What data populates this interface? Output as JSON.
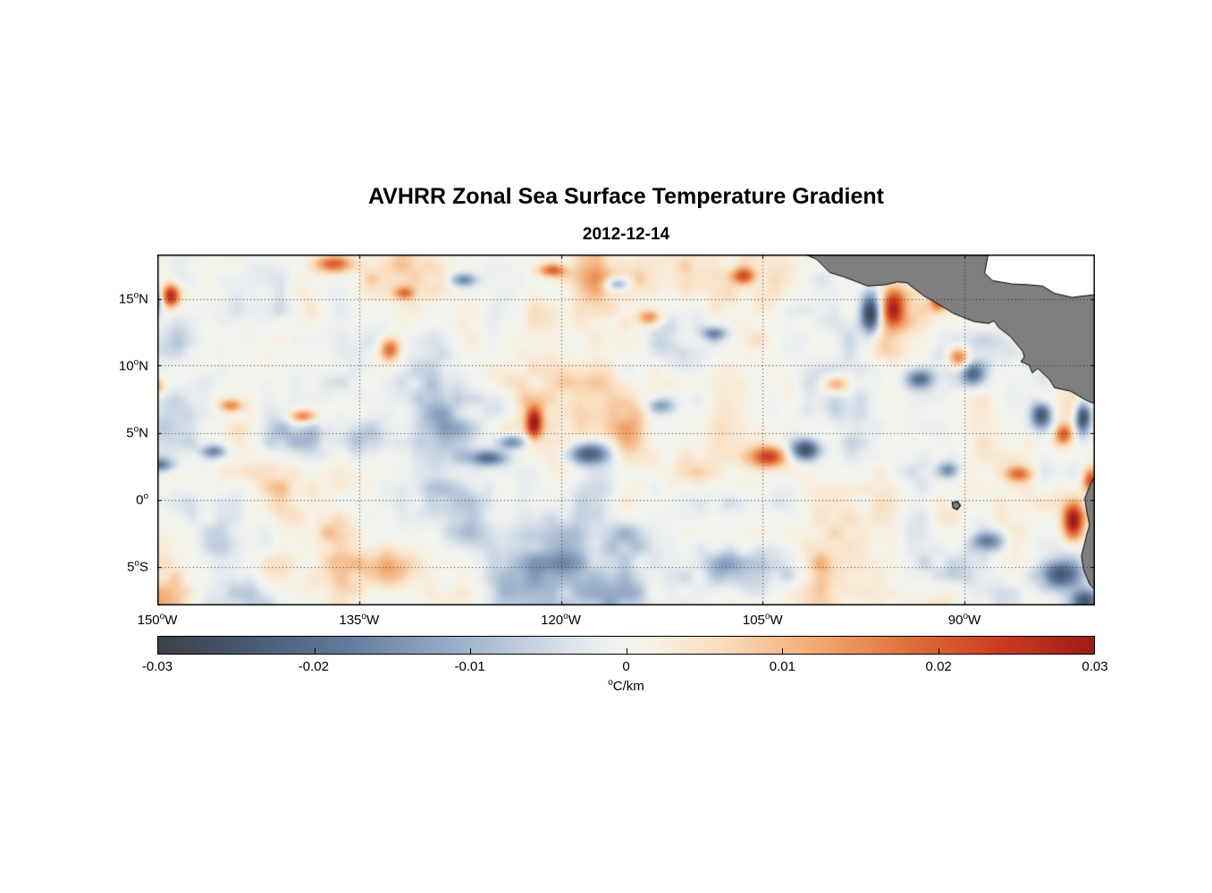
{
  "chart_data": {
    "type": "heatmap",
    "title": "AVHRR Zonal Sea Surface Temperature Gradient",
    "subtitle": "2012-12-14",
    "grid": "dotted",
    "land_color": "#7f7f7f",
    "coast_stroke": "#000000",
    "caribbean_mask_color": "#ffffff",
    "axes": {
      "lon_range": [
        -150,
        -80.3
      ],
      "lat_range": [
        -7.9,
        18.3
      ],
      "x_ticks": [
        {
          "num": "150",
          "deg": "o",
          "hem": "W",
          "lon": -150
        },
        {
          "num": "135",
          "deg": "o",
          "hem": "W",
          "lon": -135
        },
        {
          "num": "120",
          "deg": "o",
          "hem": "W",
          "lon": -120
        },
        {
          "num": "105",
          "deg": "o",
          "hem": "W",
          "lon": -105
        },
        {
          "num": "90",
          "deg": "o",
          "hem": "W",
          "lon": -90
        }
      ],
      "y_ticks": [
        {
          "num": "15",
          "deg": "o",
          "hem": "N",
          "lat": 15
        },
        {
          "num": "10",
          "deg": "o",
          "hem": "N",
          "lat": 10
        },
        {
          "num": "5",
          "deg": "o",
          "hem": "N",
          "lat": 5
        },
        {
          "num": "0",
          "deg": "o",
          "hem": "",
          "lat": 0
        },
        {
          "num": "5",
          "deg": "o",
          "hem": "S",
          "lat": -5
        }
      ]
    },
    "colorbar": {
      "min": -0.03,
      "max": 0.03,
      "label_deg": "o",
      "label_text": "C/km",
      "ticks": [
        {
          "label": "-0.03",
          "value": -0.03
        },
        {
          "label": "-0.02",
          "value": -0.02
        },
        {
          "label": "-0.01",
          "value": -0.01
        },
        {
          "label": "0",
          "value": 0
        },
        {
          "label": "0.01",
          "value": 0.01
        },
        {
          "label": "0.02",
          "value": 0.02
        },
        {
          "label": "0.03",
          "value": 0.03
        }
      ],
      "stops": [
        [
          -0.03,
          "#3b4046"
        ],
        [
          -0.024,
          "#495a73"
        ],
        [
          -0.018,
          "#62799b"
        ],
        [
          -0.012,
          "#90a7c4"
        ],
        [
          -0.006,
          "#c6d3e1"
        ],
        [
          -0.002,
          "#e9edf0"
        ],
        [
          0.0,
          "#f2f4ee"
        ],
        [
          0.002,
          "#f8f0e2"
        ],
        [
          0.006,
          "#f9dec0"
        ],
        [
          0.012,
          "#f3ab74"
        ],
        [
          0.018,
          "#e1703a"
        ],
        [
          0.024,
          "#cc3b22"
        ],
        [
          0.03,
          "#9e1a18"
        ]
      ]
    },
    "ocean_features": [
      {
        "lon": -149.0,
        "lat": 15.2,
        "value": 0.027,
        "rx": 0.7,
        "ry": 0.9
      },
      {
        "lon": -150.3,
        "lat": 15.0,
        "value": -0.028,
        "rx": 0.6,
        "ry": 1.0
      },
      {
        "lon": -136.9,
        "lat": 17.6,
        "value": 0.02,
        "rx": 1.4,
        "ry": 0.7
      },
      {
        "lon": -132.7,
        "lat": 11.2,
        "value": 0.02,
        "rx": 0.8,
        "ry": 0.9
      },
      {
        "lon": -139.2,
        "lat": 6.2,
        "value": 0.018,
        "rx": 1.0,
        "ry": 0.5
      },
      {
        "lon": -125.4,
        "lat": 3.1,
        "value": -0.02,
        "rx": 1.5,
        "ry": 0.6
      },
      {
        "lon": -123.6,
        "lat": 4.3,
        "value": -0.018,
        "rx": 1.1,
        "ry": 0.6
      },
      {
        "lon": -122.0,
        "lat": 5.6,
        "value": 0.024,
        "rx": 0.6,
        "ry": 1.1
      },
      {
        "lon": -117.8,
        "lat": 3.4,
        "value": -0.024,
        "rx": 1.5,
        "ry": 0.8
      },
      {
        "lon": -112.6,
        "lat": 7.0,
        "value": -0.013,
        "rx": 1.0,
        "ry": 0.6
      },
      {
        "lon": -104.6,
        "lat": 3.2,
        "value": 0.024,
        "rx": 1.4,
        "ry": 0.8
      },
      {
        "lon": -101.8,
        "lat": 3.7,
        "value": -0.026,
        "rx": 1.1,
        "ry": 0.8
      },
      {
        "lon": -95.3,
        "lat": 14.2,
        "value": 0.03,
        "rx": 0.9,
        "ry": 1.5
      },
      {
        "lon": -97.0,
        "lat": 13.9,
        "value": -0.029,
        "rx": 0.7,
        "ry": 1.4
      },
      {
        "lon": -99.6,
        "lat": 8.6,
        "value": 0.018,
        "rx": 0.9,
        "ry": 0.7
      },
      {
        "lon": -93.3,
        "lat": 9.0,
        "value": -0.018,
        "rx": 1.0,
        "ry": 0.7
      },
      {
        "lon": -90.4,
        "lat": 10.6,
        "value": 0.02,
        "rx": 0.8,
        "ry": 0.8
      },
      {
        "lon": -89.4,
        "lat": 9.4,
        "value": -0.02,
        "rx": 0.8,
        "ry": 0.8
      },
      {
        "lon": -84.3,
        "lat": 6.3,
        "value": -0.026,
        "rx": 0.8,
        "ry": 1.0
      },
      {
        "lon": -81.2,
        "lat": 6.1,
        "value": -0.028,
        "rx": 0.6,
        "ry": 1.2
      },
      {
        "lon": -82.6,
        "lat": 4.9,
        "value": 0.02,
        "rx": 0.7,
        "ry": 0.8
      },
      {
        "lon": -81.9,
        "lat": -1.6,
        "value": 0.029,
        "rx": 0.8,
        "ry": 1.4
      },
      {
        "lon": -83.0,
        "lat": -5.6,
        "value": -0.022,
        "rx": 1.6,
        "ry": 1.1
      },
      {
        "lon": -81.0,
        "lat": -7.6,
        "value": -0.024,
        "rx": 1.0,
        "ry": 0.9
      },
      {
        "lon": -131.6,
        "lat": 15.4,
        "value": 0.016,
        "rx": 0.8,
        "ry": 0.5
      },
      {
        "lon": -149.9,
        "lat": 2.6,
        "value": -0.018,
        "rx": 1.1,
        "ry": 0.5
      },
      {
        "lon": -145.8,
        "lat": 3.6,
        "value": -0.016,
        "rx": 0.9,
        "ry": 0.5
      },
      {
        "lon": -144.5,
        "lat": 7.0,
        "value": 0.015,
        "rx": 0.9,
        "ry": 0.5
      },
      {
        "lon": -120.6,
        "lat": 17.1,
        "value": 0.018,
        "rx": 1.1,
        "ry": 0.5
      },
      {
        "lon": -115.9,
        "lat": 16.1,
        "value": -0.016,
        "rx": 0.9,
        "ry": 0.5
      },
      {
        "lon": -113.4,
        "lat": 13.6,
        "value": 0.016,
        "rx": 0.9,
        "ry": 0.6
      },
      {
        "lon": -108.6,
        "lat": 12.4,
        "value": -0.015,
        "rx": 1.0,
        "ry": 0.5
      },
      {
        "lon": -106.4,
        "lat": 16.7,
        "value": 0.018,
        "rx": 0.9,
        "ry": 0.6
      },
      {
        "lon": -91.9,
        "lat": 14.9,
        "value": 0.022,
        "rx": 0.6,
        "ry": 0.8
      },
      {
        "lon": -80.6,
        "lat": 1.4,
        "value": 0.02,
        "rx": 0.6,
        "ry": 0.9
      },
      {
        "lon": -85.9,
        "lat": 1.9,
        "value": 0.016,
        "rx": 1.0,
        "ry": 0.6
      },
      {
        "lon": -88.2,
        "lat": -3.1,
        "value": -0.015,
        "rx": 1.2,
        "ry": 0.7
      },
      {
        "lon": -150.2,
        "lat": 8.4,
        "value": 0.015,
        "rx": 0.7,
        "ry": 0.6
      },
      {
        "lon": -127.2,
        "lat": 16.4,
        "value": -0.015,
        "rx": 1.0,
        "ry": 0.5
      },
      {
        "lon": -91.2,
        "lat": 2.2,
        "value": -0.016,
        "rx": 0.8,
        "ry": 0.6
      }
    ],
    "coastlines": {
      "caribbean_mask": [
        [
          -88.2,
          18.5
        ],
        [
          -88.5,
          16.9
        ],
        [
          -87.9,
          16.35
        ],
        [
          -86.5,
          16.1
        ],
        [
          -85.4,
          16.05
        ],
        [
          -84.2,
          15.95
        ],
        [
          -83.3,
          15.4
        ],
        [
          -82.0,
          15.1
        ],
        [
          -80.0,
          15.3
        ],
        [
          -79.0,
          16.0
        ],
        [
          -76.0,
          16.5
        ],
        [
          -76.0,
          19.0
        ]
      ],
      "mainland": [
        [
          -102.3,
          18.5
        ],
        [
          -101.0,
          17.95
        ],
        [
          -100.0,
          16.95
        ],
        [
          -99.0,
          16.65
        ],
        [
          -97.2,
          15.95
        ],
        [
          -95.8,
          16.05
        ],
        [
          -95.0,
          16.25
        ],
        [
          -94.3,
          16.2
        ],
        [
          -93.0,
          15.2
        ],
        [
          -92.2,
          14.75
        ],
        [
          -90.8,
          13.9
        ],
        [
          -89.3,
          13.3
        ],
        [
          -88.2,
          13.15
        ],
        [
          -87.8,
          13.35
        ],
        [
          -87.45,
          12.85
        ],
        [
          -86.6,
          12.2
        ],
        [
          -85.9,
          11.35
        ],
        [
          -85.65,
          11.05
        ],
        [
          -85.55,
          10.65
        ],
        [
          -85.8,
          10.3
        ],
        [
          -85.2,
          10.05
        ],
        [
          -84.95,
          9.45
        ],
        [
          -84.55,
          9.8
        ],
        [
          -83.7,
          9.0
        ],
        [
          -83.3,
          8.35
        ],
        [
          -82.1,
          8.1
        ],
        [
          -81.1,
          7.5
        ],
        [
          -80.45,
          7.2
        ],
        [
          -80.0,
          7.55
        ],
        [
          -79.5,
          8.3
        ],
        [
          -78.9,
          8.5
        ],
        [
          -76.0,
          8.8
        ],
        [
          -76.0,
          15.2
        ],
        [
          -79.5,
          15.4
        ],
        [
          -82.0,
          15.1
        ],
        [
          -83.3,
          15.4
        ],
        [
          -84.2,
          15.95
        ],
        [
          -85.4,
          16.05
        ],
        [
          -86.5,
          16.1
        ],
        [
          -87.9,
          16.35
        ],
        [
          -88.5,
          16.9
        ],
        [
          -88.2,
          18.5
        ]
      ],
      "south_america": [
        [
          -80.1,
          2.2
        ],
        [
          -80.6,
          1.2
        ],
        [
          -81.05,
          0.1
        ],
        [
          -80.9,
          -0.9
        ],
        [
          -80.7,
          -1.9
        ],
        [
          -80.9,
          -2.6
        ],
        [
          -81.3,
          -4.2
        ],
        [
          -81.15,
          -5.2
        ],
        [
          -80.7,
          -6.3
        ],
        [
          -79.9,
          -7.2
        ],
        [
          -79.2,
          -8.4
        ],
        [
          -76.0,
          -8.4
        ],
        [
          -76.0,
          2.2
        ]
      ],
      "galapagos": [
        [
          -90.9,
          -0.2
        ],
        [
          -90.5,
          -0.15
        ],
        [
          -90.3,
          -0.45
        ],
        [
          -90.55,
          -0.75
        ],
        [
          -90.85,
          -0.6
        ]
      ]
    }
  }
}
